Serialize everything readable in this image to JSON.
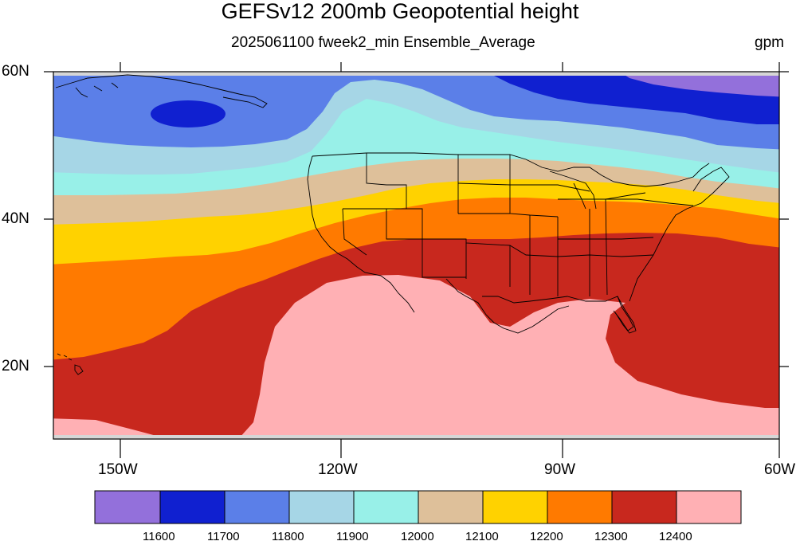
{
  "header": {
    "title": "GEFSv12 200mb Geopotential height",
    "subtitle": "2025061100 fweek2_min Ensemble_Average",
    "units": "gpm"
  },
  "axes": {
    "lat_labels": [
      "60N",
      "40N",
      "20N"
    ],
    "lon_labels": [
      "150W",
      "120W",
      "90W",
      "60W"
    ]
  },
  "legend": {
    "levels": [
      "11600",
      "11700",
      "11800",
      "11900",
      "12000",
      "12100",
      "12200",
      "12300",
      "12400"
    ],
    "colors": [
      "#9370db",
      "#1020d0",
      "#5b7fe8",
      "#a6d6e6",
      "#98f0e8",
      "#dec09a",
      "#ffd200",
      "#ff7a00",
      "#c8281e",
      "#ffb0b4"
    ]
  },
  "colors": {
    "land_outline": "#000000",
    "frame": "#000000",
    "missing": "#d6d6d6"
  }
}
